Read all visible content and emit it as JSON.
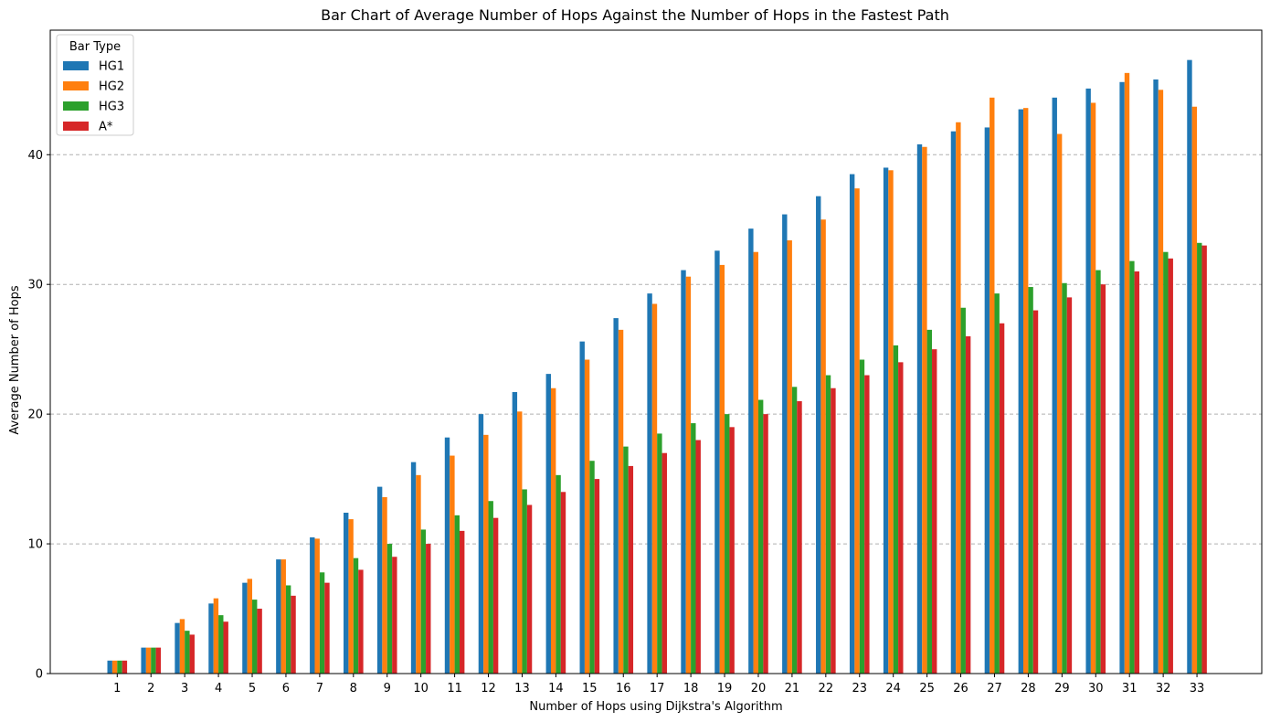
{
  "chart_data": {
    "type": "bar",
    "title": "Bar Chart of Average Number of Hops Against the Number of Hops in the Fastest Path",
    "xlabel": "Number of Hops using Dijkstra's Algorithm",
    "ylabel": "Average Number of Hops",
    "categories": [
      "1",
      "2",
      "3",
      "4",
      "5",
      "6",
      "7",
      "8",
      "9",
      "10",
      "11",
      "12",
      "13",
      "14",
      "15",
      "16",
      "17",
      "18",
      "19",
      "20",
      "21",
      "22",
      "23",
      "24",
      "25",
      "26",
      "27",
      "28",
      "29",
      "30",
      "31",
      "32",
      "33"
    ],
    "yticks": [
      0,
      10,
      20,
      30,
      40
    ],
    "ylim": [
      0,
      49.6
    ],
    "grid": "y-dashed",
    "legend": {
      "title": "Bar Type",
      "placement": "top-left"
    },
    "series": [
      {
        "name": "HG1",
        "color": "#1f77b4",
        "values": [
          1.0,
          2.0,
          3.9,
          5.4,
          7.0,
          8.8,
          10.5,
          12.4,
          14.4,
          16.3,
          18.2,
          20.0,
          21.7,
          23.1,
          25.6,
          27.4,
          29.3,
          31.1,
          32.6,
          34.3,
          35.4,
          36.8,
          38.5,
          39.0,
          40.8,
          41.8,
          42.1,
          43.5,
          44.4,
          45.1,
          45.6,
          45.8,
          47.3
        ]
      },
      {
        "name": "HG2",
        "color": "#ff7f0e",
        "values": [
          1.0,
          2.0,
          4.2,
          5.8,
          7.3,
          8.8,
          10.4,
          11.9,
          13.6,
          15.3,
          16.8,
          18.4,
          20.2,
          22.0,
          24.2,
          26.5,
          28.5,
          30.6,
          31.5,
          32.5,
          33.4,
          35.0,
          37.4,
          38.8,
          40.6,
          42.5,
          44.4,
          43.6,
          41.6,
          44.0,
          46.3,
          45.0,
          43.7
        ]
      },
      {
        "name": "HG3",
        "color": "#2ca02c",
        "values": [
          1.0,
          2.0,
          3.3,
          4.5,
          5.7,
          6.8,
          7.8,
          8.9,
          10.0,
          11.1,
          12.2,
          13.3,
          14.2,
          15.3,
          16.4,
          17.5,
          18.5,
          19.3,
          20.0,
          21.1,
          22.1,
          23.0,
          24.2,
          25.3,
          26.5,
          28.2,
          29.3,
          29.8,
          30.1,
          31.1,
          31.8,
          32.5,
          33.2
        ]
      },
      {
        "name": "A*",
        "color": "#d62728",
        "values": [
          1,
          2,
          3,
          4,
          5,
          6,
          7,
          8,
          9,
          10,
          11,
          12,
          13,
          14,
          15,
          16,
          17,
          18,
          19,
          20,
          21,
          22,
          23,
          24,
          25,
          26,
          27,
          28,
          29,
          30,
          31,
          32,
          33
        ]
      }
    ]
  }
}
